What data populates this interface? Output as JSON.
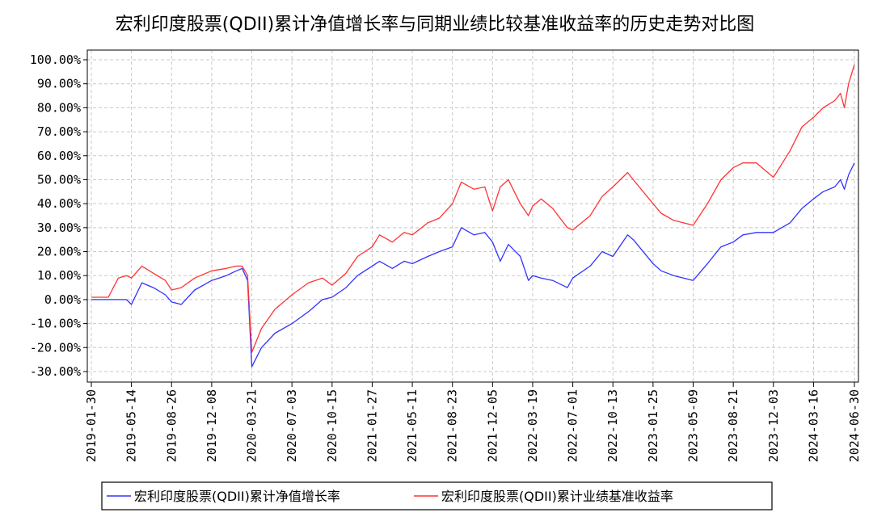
{
  "chart_data": {
    "type": "line",
    "title": "宏利印度股票(QDII)累计净值增长率与同期业绩比较基准收益率的历史走势对比图",
    "xlabel": "",
    "ylabel": "",
    "ylim": [
      -30,
      100
    ],
    "yticks": [
      "100.00%",
      "90.00%",
      "80.00%",
      "70.00%",
      "60.00%",
      "50.00%",
      "40.00%",
      "30.00%",
      "20.00%",
      "10.00%",
      "0.00%",
      "-10.00%",
      "-20.00%",
      "-30.00%"
    ],
    "xticks": [
      "2019-01-30",
      "2019-05-14",
      "2019-08-26",
      "2019-12-08",
      "2020-03-21",
      "2020-07-03",
      "2020-10-15",
      "2021-01-27",
      "2021-05-11",
      "2021-08-23",
      "2021-12-05",
      "2022-03-19",
      "2022-07-01",
      "2022-10-13",
      "2023-01-25",
      "2023-05-09",
      "2023-08-21",
      "2023-12-03",
      "2024-03-16",
      "2024-06-30"
    ],
    "grid": true,
    "legend_position": "bottom",
    "series": [
      {
        "name": "宏利印度股票(QDII)累计净值增长率",
        "color": "#3333ff",
        "x": [
          "2019-01-30",
          "2019-03-15",
          "2019-04-10",
          "2019-05-01",
          "2019-05-14",
          "2019-06-10",
          "2019-07-10",
          "2019-08-10",
          "2019-08-26",
          "2019-09-20",
          "2019-10-25",
          "2019-12-08",
          "2020-01-15",
          "2020-02-10",
          "2020-02-25",
          "2020-03-10",
          "2020-03-21",
          "2020-04-15",
          "2020-05-20",
          "2020-07-03",
          "2020-08-15",
          "2020-09-20",
          "2020-10-15",
          "2020-11-20",
          "2020-12-20",
          "2021-01-27",
          "2021-02-15",
          "2021-03-20",
          "2021-04-20",
          "2021-05-11",
          "2021-06-20",
          "2021-07-20",
          "2021-08-23",
          "2021-09-15",
          "2021-10-18",
          "2021-11-15",
          "2021-12-05",
          "2021-12-25",
          "2022-01-15",
          "2022-02-15",
          "2022-03-08",
          "2022-03-19",
          "2022-04-10",
          "2022-05-10",
          "2022-06-17",
          "2022-07-01",
          "2022-08-15",
          "2022-09-15",
          "2022-10-13",
          "2022-11-20",
          "2022-12-05",
          "2023-01-25",
          "2023-02-15",
          "2023-03-20",
          "2023-05-09",
          "2023-06-15",
          "2023-07-20",
          "2023-08-21",
          "2023-09-15",
          "2023-10-20",
          "2023-12-03",
          "2024-01-15",
          "2024-02-15",
          "2024-03-16",
          "2024-04-10",
          "2024-05-10",
          "2024-05-25",
          "2024-06-04",
          "2024-06-15",
          "2024-06-30"
        ],
        "values": [
          0,
          0,
          0,
          0,
          -2,
          7,
          5,
          2,
          -1,
          -2,
          4,
          8,
          10,
          12,
          13,
          8,
          -28,
          -20,
          -14,
          -10,
          -5,
          0,
          1,
          5,
          10,
          14,
          16,
          13,
          16,
          15,
          18,
          20,
          22,
          30,
          27,
          28,
          24,
          16,
          23,
          18,
          8,
          10,
          9,
          8,
          5,
          9,
          14,
          20,
          18,
          27,
          25,
          15,
          12,
          10,
          8,
          15,
          22,
          24,
          27,
          28,
          28,
          32,
          38,
          42,
          45,
          47,
          50,
          46,
          52,
          57
        ]
      },
      {
        "name": "宏利印度股票(QDII)累计业绩基准收益率",
        "color": "#ff3333",
        "x": [
          "2019-01-30",
          "2019-03-15",
          "2019-04-10",
          "2019-05-01",
          "2019-05-14",
          "2019-06-10",
          "2019-07-10",
          "2019-08-10",
          "2019-08-26",
          "2019-09-20",
          "2019-10-25",
          "2019-12-08",
          "2020-01-15",
          "2020-02-10",
          "2020-02-25",
          "2020-03-10",
          "2020-03-21",
          "2020-04-15",
          "2020-05-20",
          "2020-07-03",
          "2020-08-15",
          "2020-09-20",
          "2020-10-15",
          "2020-11-20",
          "2020-12-20",
          "2021-01-27",
          "2021-02-15",
          "2021-03-20",
          "2021-04-20",
          "2021-05-11",
          "2021-06-20",
          "2021-07-20",
          "2021-08-23",
          "2021-09-15",
          "2021-10-18",
          "2021-11-15",
          "2021-12-05",
          "2021-12-25",
          "2022-01-15",
          "2022-02-15",
          "2022-03-08",
          "2022-03-19",
          "2022-04-10",
          "2022-05-10",
          "2022-06-17",
          "2022-07-01",
          "2022-08-15",
          "2022-09-15",
          "2022-10-13",
          "2022-11-20",
          "2022-12-05",
          "2023-01-25",
          "2023-02-15",
          "2023-03-20",
          "2023-05-09",
          "2023-06-15",
          "2023-07-20",
          "2023-08-21",
          "2023-09-15",
          "2023-10-20",
          "2023-12-03",
          "2024-01-15",
          "2024-02-15",
          "2024-03-16",
          "2024-04-10",
          "2024-05-10",
          "2024-05-25",
          "2024-06-04",
          "2024-06-15",
          "2024-06-30"
        ],
        "values": [
          1,
          1,
          9,
          10,
          9,
          14,
          11,
          8,
          4,
          5,
          9,
          12,
          13,
          14,
          14,
          10,
          -22,
          -12,
          -4,
          2,
          7,
          9,
          6,
          11,
          18,
          22,
          27,
          24,
          28,
          27,
          32,
          34,
          40,
          49,
          46,
          47,
          37,
          47,
          50,
          40,
          35,
          39,
          42,
          38,
          30,
          29,
          35,
          43,
          47,
          53,
          50,
          40,
          36,
          33,
          31,
          40,
          50,
          55,
          57,
          57,
          51,
          62,
          72,
          76,
          80,
          83,
          86,
          80,
          90,
          98
        ]
      }
    ]
  }
}
